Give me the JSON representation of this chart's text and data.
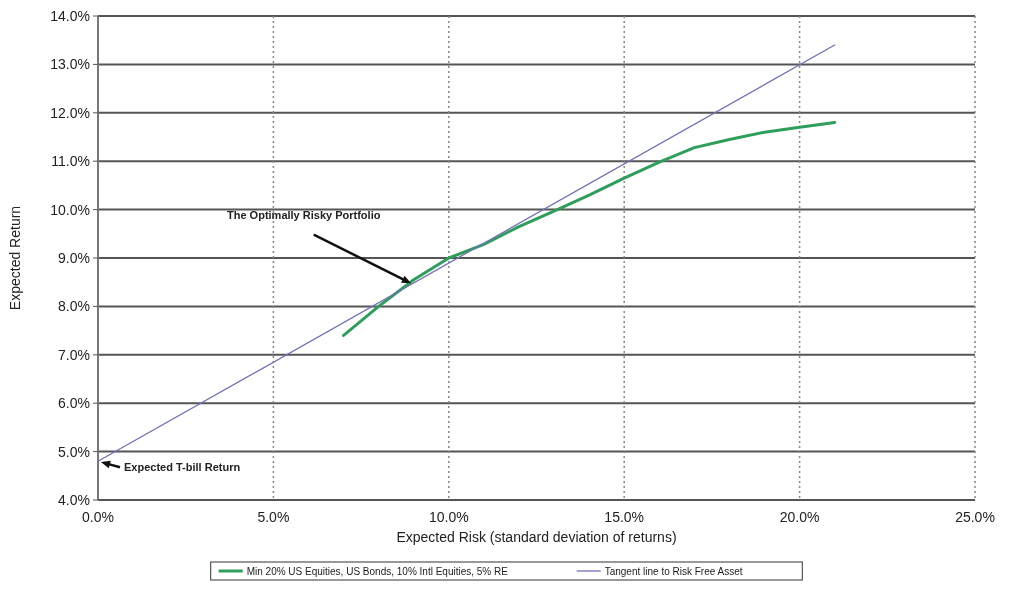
{
  "chart_data": {
    "type": "line",
    "xlabel": "Expected Risk (standard deviation of returns)",
    "ylabel": "Expected Return",
    "series": [
      {
        "name": "Min 20% US Equities, US Bonds, 10% Intl Equities, 5% RE",
        "color": "#2e9e5b",
        "x": [
          7,
          8,
          9,
          10,
          11,
          12,
          13,
          14,
          15,
          16,
          17,
          18,
          19,
          20,
          21
        ],
        "values": [
          7.4,
          8.0,
          8.55,
          9.0,
          9.28,
          9.65,
          9.97,
          10.3,
          10.65,
          10.98,
          11.28,
          11.45,
          11.6,
          11.7,
          11.8
        ]
      },
      {
        "name": "Tangent line to Risk Free Asset",
        "color": "#7070b8",
        "x": [
          0,
          21
        ],
        "values": [
          4.8,
          13.4
        ]
      }
    ],
    "xlim": [
      0,
      25
    ],
    "ylim": [
      4,
      14
    ],
    "xticks": [
      {
        "value": 0,
        "label": "0.0%"
      },
      {
        "value": 5,
        "label": "5.0%"
      },
      {
        "value": 10,
        "label": "10.0%"
      },
      {
        "value": 15,
        "label": "15.0%"
      },
      {
        "value": 20,
        "label": "20.0%"
      },
      {
        "value": 25,
        "label": "25.0%"
      }
    ],
    "yticks": [
      {
        "value": 4,
        "label": "4.0%"
      },
      {
        "value": 5,
        "label": "5.0%"
      },
      {
        "value": 6,
        "label": "6.0%"
      },
      {
        "value": 7,
        "label": "7.0%"
      },
      {
        "value": 8,
        "label": "8.0%"
      },
      {
        "value": 9,
        "label": "9.0%"
      },
      {
        "value": 10,
        "label": "10.0%"
      },
      {
        "value": 11,
        "label": "11.0%"
      },
      {
        "value": 12,
        "label": "12.0%"
      },
      {
        "value": 13,
        "label": "13.0%"
      },
      {
        "value": 14,
        "label": "14.0%"
      }
    ],
    "grid": true,
    "legend": "bottom",
    "marker": "none",
    "line_style": "solid",
    "annotations": [
      {
        "text": "The Optimally Risky Portfolio",
        "x": 9,
        "y": 8.45
      },
      {
        "text": "Expected T-bill Return",
        "x": 0,
        "y": 4.8
      }
    ]
  }
}
